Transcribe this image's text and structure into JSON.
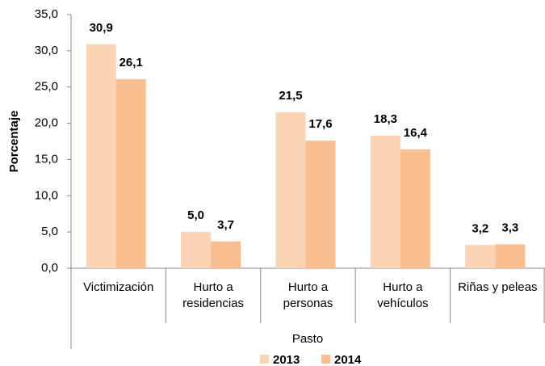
{
  "chart_data": {
    "type": "bar",
    "y_label": "Porcentaje",
    "x_label": "Pasto",
    "categories": [
      "Victimización",
      "Hurto a\nresidencias",
      "Hurto a\npersonas",
      "Hurto a\nvehículos",
      "Riñas y peleas"
    ],
    "series": [
      {
        "name": "2013",
        "color": "#fbd3b5",
        "values": [
          30.9,
          5.0,
          21.5,
          18.3,
          3.2
        ],
        "value_labels": [
          "30,9",
          "5,0",
          "21,5",
          "18,3",
          "3,2"
        ]
      },
      {
        "name": "2014",
        "color": "#f9bf91",
        "values": [
          26.1,
          3.7,
          17.6,
          16.4,
          3.3
        ],
        "value_labels": [
          "26,1",
          "3,7",
          "17,6",
          "16,4",
          "3,3"
        ]
      }
    ],
    "ylim": [
      0,
      35
    ],
    "yticks": [
      {
        "value": 0,
        "label": "0,0"
      },
      {
        "value": 5,
        "label": "5,0"
      },
      {
        "value": 10,
        "label": "10,0"
      },
      {
        "value": 15,
        "label": "15,0"
      },
      {
        "value": 20,
        "label": "20,0"
      },
      {
        "value": 25,
        "label": "25,0"
      },
      {
        "value": 30,
        "label": "30,0"
      },
      {
        "value": 35,
        "label": "35,0"
      }
    ],
    "legend": "bottom"
  }
}
